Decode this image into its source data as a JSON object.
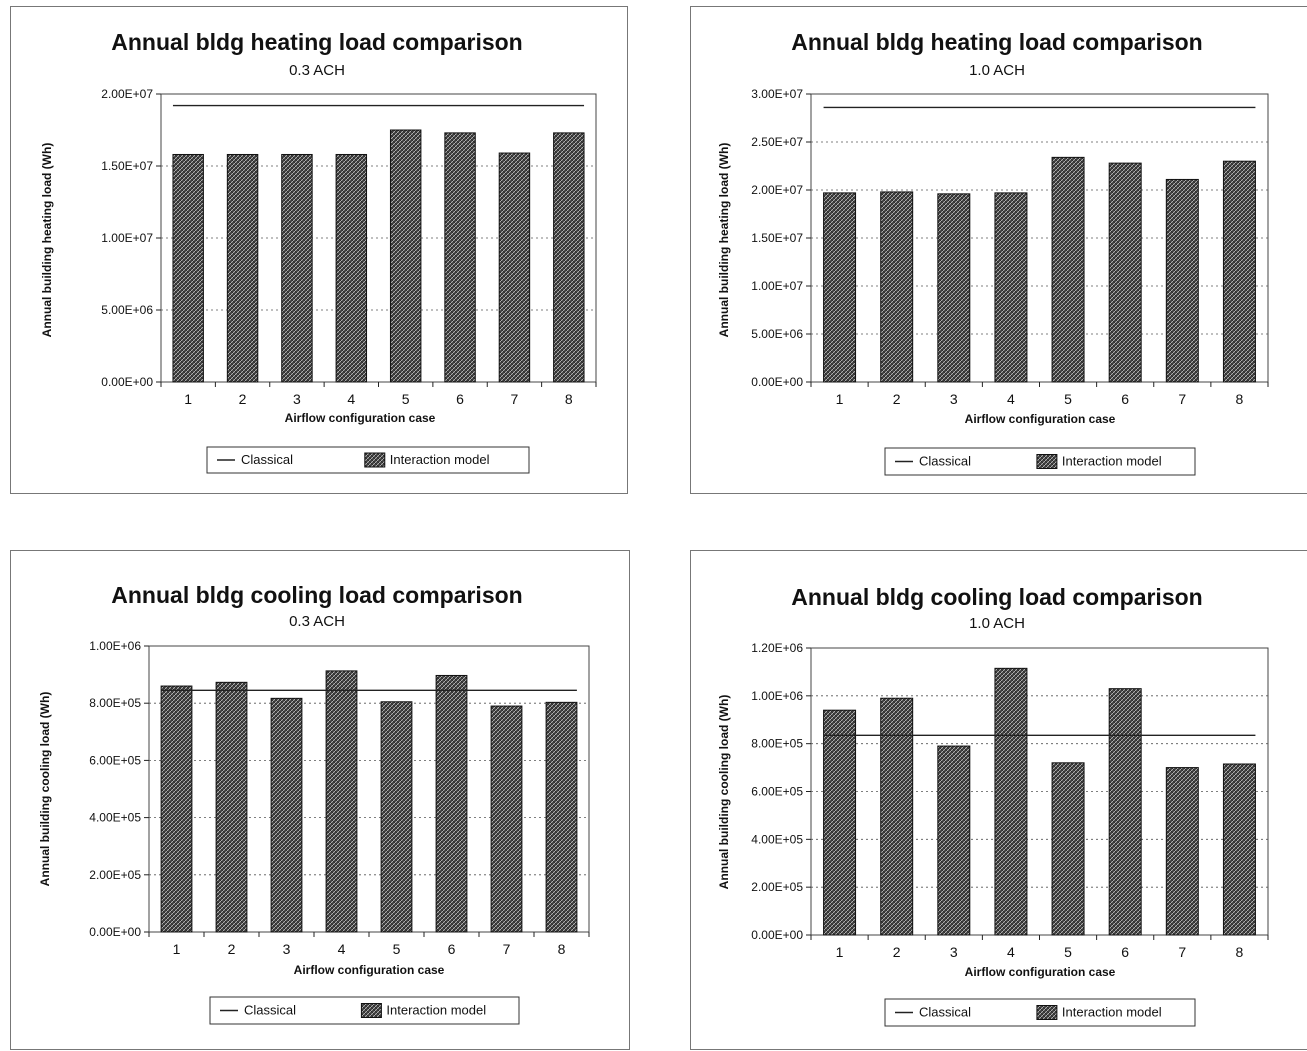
{
  "legend": {
    "classical": "Classical",
    "interaction": "Interaction model"
  },
  "chart_data": [
    {
      "type": "bar",
      "title": "Annual bldg heating load comparison",
      "subtitle": "0.3 ACH",
      "xlabel": "Airflow configuration case",
      "ylabel": "Annual building heating load (Wh)",
      "categories": [
        "1",
        "2",
        "3",
        "4",
        "5",
        "6",
        "7",
        "8"
      ],
      "ylim": [
        0,
        20000000
      ],
      "yticks": [
        0,
        5000000,
        10000000,
        15000000,
        20000000
      ],
      "ytick_labels": [
        "0.00E+00",
        "5.00E+06",
        "1.00E+07",
        "1.50E+07",
        "2.00E+07"
      ],
      "grid": true,
      "legend_position": "bottom",
      "series": [
        {
          "name": "Interaction model",
          "kind": "bar",
          "values": [
            15800000,
            15800000,
            15800000,
            15800000,
            17500000,
            17300000,
            15900000,
            17300000
          ]
        },
        {
          "name": "Classical",
          "kind": "line",
          "values": [
            19200000,
            19200000,
            19200000,
            19200000,
            19200000,
            19200000,
            19200000,
            19200000
          ]
        }
      ]
    },
    {
      "type": "bar",
      "title": "Annual bldg heating load comparison",
      "subtitle": "1.0 ACH",
      "xlabel": "Airflow configuration case",
      "ylabel": "Annual building heating load (Wh)",
      "categories": [
        "1",
        "2",
        "3",
        "4",
        "5",
        "6",
        "7",
        "8"
      ],
      "ylim": [
        0,
        30000000
      ],
      "yticks": [
        0,
        5000000,
        10000000,
        15000000,
        20000000,
        25000000,
        30000000
      ],
      "ytick_labels": [
        "0.00E+00",
        "5.00E+06",
        "1.00E+07",
        "1.50E+07",
        "2.00E+07",
        "2.50E+07",
        "3.00E+07"
      ],
      "grid": true,
      "legend_position": "bottom",
      "series": [
        {
          "name": "Interaction model",
          "kind": "bar",
          "values": [
            19700000,
            19800000,
            19600000,
            19700000,
            23400000,
            22800000,
            21100000,
            23000000
          ]
        },
        {
          "name": "Classical",
          "kind": "line",
          "values": [
            28600000,
            28600000,
            28600000,
            28600000,
            28600000,
            28600000,
            28600000,
            28600000
          ]
        }
      ]
    },
    {
      "type": "bar",
      "title": "Annual bldg cooling load comparison",
      "subtitle": "0.3 ACH",
      "xlabel": "Airflow configuration case",
      "ylabel": "Annual building cooling load (Wh)",
      "categories": [
        "1",
        "2",
        "3",
        "4",
        "5",
        "6",
        "7",
        "8"
      ],
      "ylim": [
        0,
        1000000
      ],
      "yticks": [
        0,
        200000,
        400000,
        600000,
        800000,
        1000000
      ],
      "ytick_labels": [
        "0.00E+00",
        "2.00E+05",
        "4.00E+05",
        "6.00E+05",
        "8.00E+05",
        "1.00E+06"
      ],
      "grid": true,
      "legend_position": "bottom",
      "series": [
        {
          "name": "Interaction model",
          "kind": "bar",
          "values": [
            860000,
            873000,
            817000,
            913000,
            805000,
            897000,
            790000,
            803000
          ]
        },
        {
          "name": "Classical",
          "kind": "line",
          "values": [
            845000,
            845000,
            845000,
            845000,
            845000,
            845000,
            845000,
            845000
          ]
        }
      ]
    },
    {
      "type": "bar",
      "title": "Annual bldg cooling load comparison",
      "subtitle": "1.0 ACH",
      "xlabel": "Airflow configuration case",
      "ylabel": "Annual building cooling load (Wh)",
      "categories": [
        "1",
        "2",
        "3",
        "4",
        "5",
        "6",
        "7",
        "8"
      ],
      "ylim": [
        0,
        1200000
      ],
      "yticks": [
        0,
        200000,
        400000,
        600000,
        800000,
        1000000,
        1200000
      ],
      "ytick_labels": [
        "0.00E+00",
        "2.00E+05",
        "4.00E+05",
        "6.00E+05",
        "8.00E+05",
        "1.00E+06",
        "1.20E+06"
      ],
      "grid": true,
      "legend_position": "bottom",
      "series": [
        {
          "name": "Interaction model",
          "kind": "bar",
          "values": [
            940000,
            990000,
            790000,
            1115000,
            720000,
            1030000,
            700000,
            715000
          ]
        },
        {
          "name": "Classical",
          "kind": "line",
          "values": [
            835000,
            835000,
            835000,
            835000,
            835000,
            835000,
            835000,
            835000
          ]
        }
      ]
    }
  ]
}
